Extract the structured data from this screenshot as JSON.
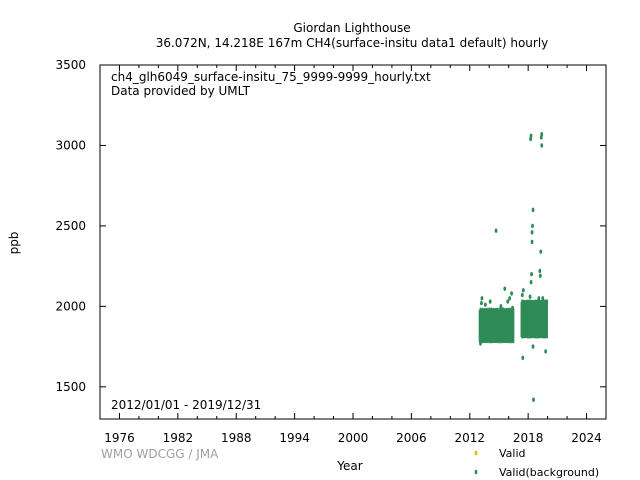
{
  "chart_data": {
    "type": "scatter",
    "title": "Giordan Lighthouse",
    "subtitle": "36.072N, 14.218E 167m    CH4(surface-insitu data1 default) hourly",
    "file_label": "ch4_glh6049_surface-insitu_75_9999-9999_hourly.txt",
    "provider_label": "Data provided by UMLT",
    "period_label": "2012/01/01 - 2019/12/31",
    "xlabel": "Year",
    "ylabel": "ppb",
    "xlim": [
      1974,
      2026
    ],
    "ylim": [
      1300,
      3500
    ],
    "x_ticks": [
      1976,
      1982,
      1988,
      1994,
      2000,
      2006,
      2012,
      2018,
      2024
    ],
    "y_ticks": [
      1500,
      2000,
      2500,
      3000,
      3500
    ],
    "grid": false,
    "legend_position": "bottom-right",
    "series": [
      {
        "name": "Valid",
        "color": "#e6b800",
        "points": []
      },
      {
        "name": "Valid(background)",
        "color": "#2e8b57",
        "bands": [
          {
            "x_start": 2013.0,
            "x_end": 2016.5,
            "y_low": 1790,
            "y_high": 1960
          },
          {
            "x_start": 2017.3,
            "x_end": 2019.95,
            "y_low": 1820,
            "y_high": 2010
          }
        ],
        "points": [
          [
            2013.1,
            1770
          ],
          [
            2013.2,
            2020
          ],
          [
            2013.25,
            2050
          ],
          [
            2013.6,
            2010
          ],
          [
            2014.1,
            2030
          ],
          [
            2014.5,
            1950
          ],
          [
            2014.7,
            2470
          ],
          [
            2015.2,
            2000
          ],
          [
            2015.4,
            1980
          ],
          [
            2015.6,
            2110
          ],
          [
            2015.9,
            2030
          ],
          [
            2016.1,
            2050
          ],
          [
            2016.3,
            2080
          ],
          [
            2016.4,
            1990
          ],
          [
            2017.4,
            2070
          ],
          [
            2017.5,
            2100
          ],
          [
            2017.45,
            1680
          ],
          [
            2017.6,
            2000
          ],
          [
            2018.2,
            2060
          ],
          [
            2018.3,
            2150
          ],
          [
            2018.35,
            2200
          ],
          [
            2018.4,
            2400
          ],
          [
            2018.4,
            2460
          ],
          [
            2018.45,
            2500
          ],
          [
            2018.5,
            2600
          ],
          [
            2018.5,
            1750
          ],
          [
            2018.55,
            1420
          ],
          [
            2018.25,
            3040
          ],
          [
            2018.3,
            3060
          ],
          [
            2019.1,
            2050
          ],
          [
            2019.2,
            2220
          ],
          [
            2019.25,
            2190
          ],
          [
            2019.3,
            2340
          ],
          [
            2019.35,
            3050
          ],
          [
            2019.4,
            3000
          ],
          [
            2019.4,
            3070
          ],
          [
            2019.5,
            2050
          ],
          [
            2019.6,
            2000
          ],
          [
            2019.8,
            1720
          ],
          [
            2019.9,
            2030
          ]
        ]
      }
    ]
  },
  "credit": "WMO WDCGG / JMA"
}
